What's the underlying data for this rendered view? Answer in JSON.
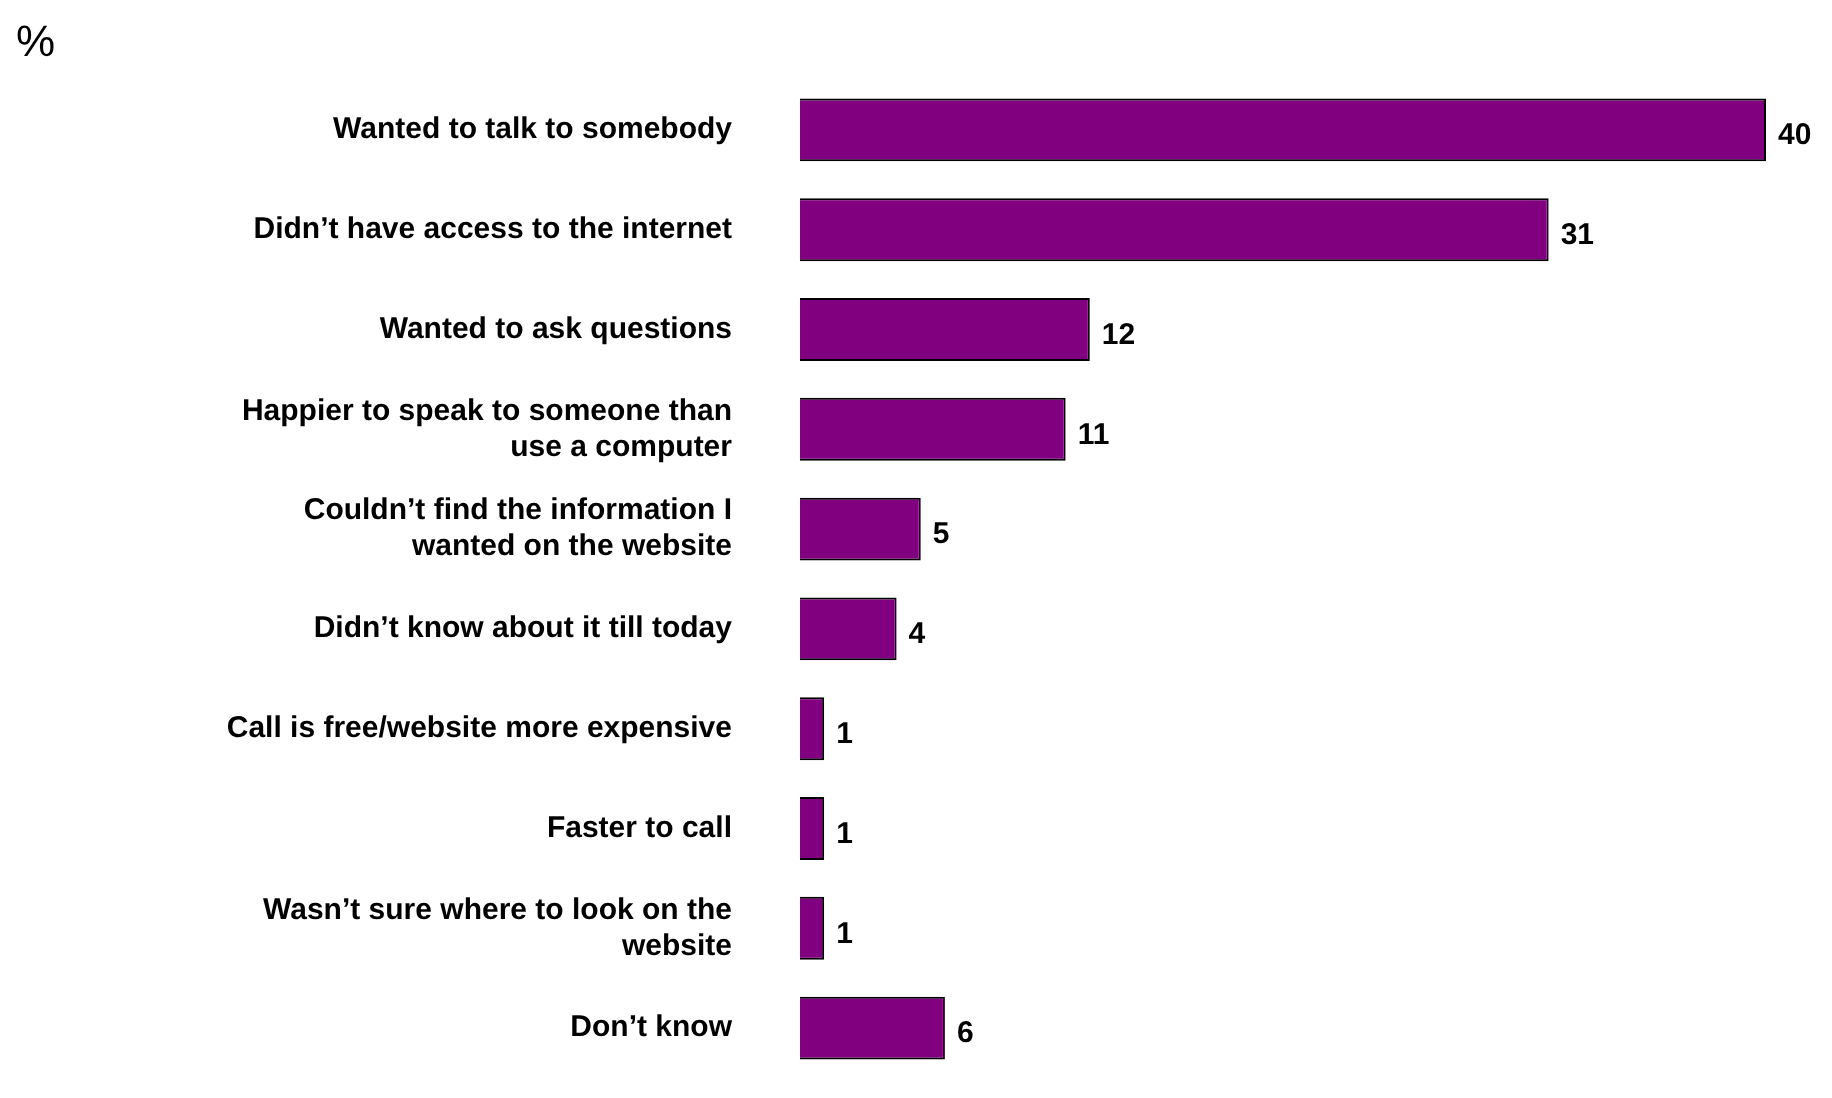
{
  "chart_data": {
    "type": "bar",
    "orientation": "horizontal",
    "xlabel": "%",
    "categories": [
      "Wanted to talk to somebody",
      "Didn’t have access to the internet",
      "Wanted to ask questions",
      "Happier to speak to someone than use a computer",
      "Couldn’t find the information I wanted on the website",
      "Didn’t know about it till today",
      "Call is free/website more expensive",
      "Faster to call",
      "Wasn’t sure where to look on the website",
      "Don’t know"
    ],
    "values": [
      40,
      31,
      12,
      11,
      5,
      4,
      1,
      1,
      1,
      6
    ],
    "color": "#800080",
    "data_labels": true,
    "tick_labels": "y"
  }
}
